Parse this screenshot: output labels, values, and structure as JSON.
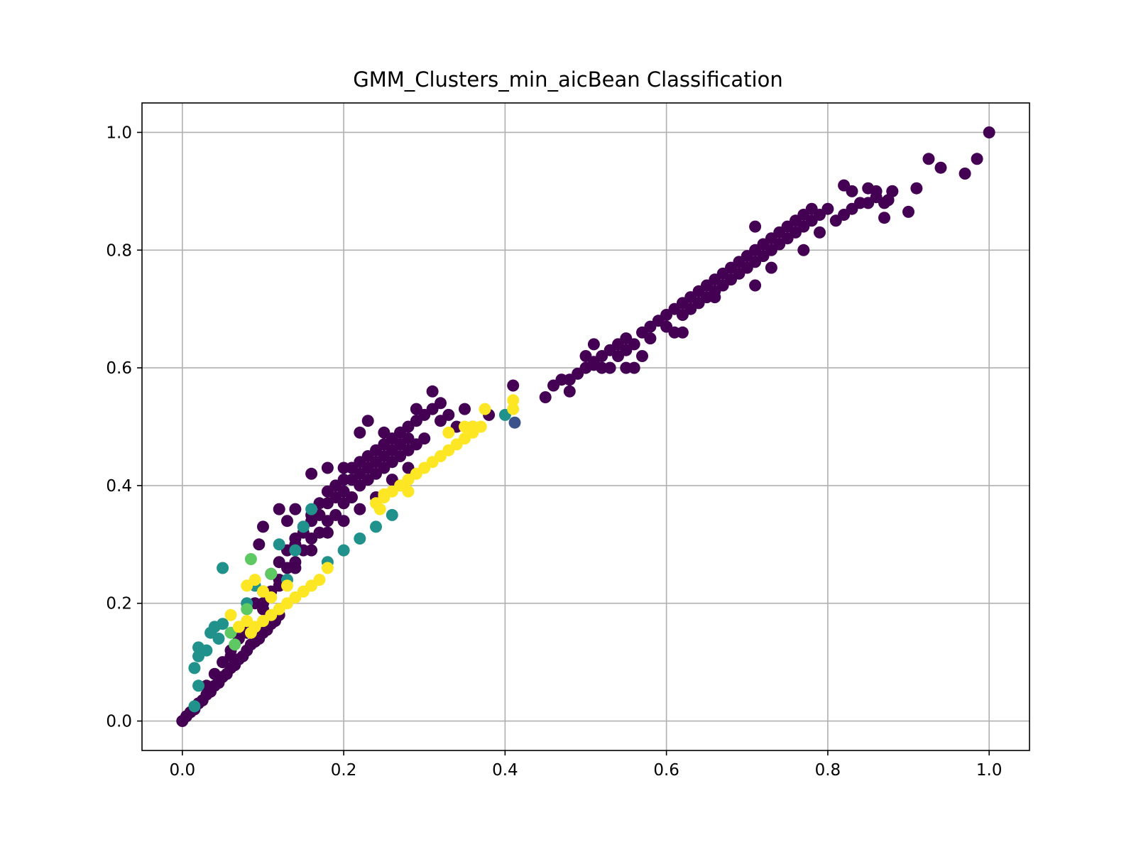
{
  "chart_data": {
    "type": "scatter",
    "title": "GMM_Clusters_min_aicBean Classification",
    "xlabel": "",
    "ylabel": "",
    "xlim": [
      -0.05,
      1.05
    ],
    "ylim": [
      -0.05,
      1.05
    ],
    "xticks": [
      "0.0",
      "0.2",
      "0.4",
      "0.6",
      "0.8",
      "1.0"
    ],
    "yticks": [
      "0.0",
      "0.2",
      "0.4",
      "0.6",
      "0.8",
      "1.0"
    ],
    "xtick_values": [
      0.0,
      0.2,
      0.4,
      0.6,
      0.8,
      1.0
    ],
    "ytick_values": [
      0.0,
      0.2,
      0.4,
      0.6,
      0.8,
      1.0
    ],
    "grid": true,
    "legend": "none",
    "colors": {
      "cluster_0": "#440154",
      "cluster_1": "#3b528b",
      "cluster_2": "#21918c",
      "cluster_3": "#5ec962",
      "cluster_4": "#fde725",
      "grid": "#b0b0b0"
    },
    "series": [
      {
        "cluster": "cluster_0",
        "points": [
          [
            0.0,
            0.0
          ],
          [
            0.005,
            0.008
          ],
          [
            0.01,
            0.015
          ],
          [
            0.015,
            0.02
          ],
          [
            0.02,
            0.03
          ],
          [
            0.025,
            0.035
          ],
          [
            0.03,
            0.045
          ],
          [
            0.035,
            0.05
          ],
          [
            0.04,
            0.06
          ],
          [
            0.045,
            0.065
          ],
          [
            0.05,
            0.075
          ],
          [
            0.055,
            0.08
          ],
          [
            0.06,
            0.09
          ],
          [
            0.065,
            0.095
          ],
          [
            0.07,
            0.105
          ],
          [
            0.075,
            0.11
          ],
          [
            0.08,
            0.12
          ],
          [
            0.085,
            0.13
          ],
          [
            0.09,
            0.135
          ],
          [
            0.095,
            0.14
          ],
          [
            0.1,
            0.15
          ],
          [
            0.105,
            0.155
          ],
          [
            0.11,
            0.165
          ],
          [
            0.115,
            0.17
          ],
          [
            0.12,
            0.18
          ],
          [
            0.03,
            0.06
          ],
          [
            0.04,
            0.08
          ],
          [
            0.05,
            0.1
          ],
          [
            0.06,
            0.12
          ],
          [
            0.07,
            0.14
          ],
          [
            0.08,
            0.16
          ],
          [
            0.09,
            0.2
          ],
          [
            0.1,
            0.22
          ],
          [
            0.11,
            0.25
          ],
          [
            0.12,
            0.27
          ],
          [
            0.13,
            0.29
          ],
          [
            0.14,
            0.31
          ],
          [
            0.15,
            0.33
          ],
          [
            0.16,
            0.35
          ],
          [
            0.17,
            0.37
          ],
          [
            0.18,
            0.39
          ],
          [
            0.19,
            0.4
          ],
          [
            0.2,
            0.41
          ],
          [
            0.21,
            0.43
          ],
          [
            0.22,
            0.44
          ],
          [
            0.23,
            0.45
          ],
          [
            0.24,
            0.46
          ],
          [
            0.25,
            0.47
          ],
          [
            0.26,
            0.48
          ],
          [
            0.27,
            0.49
          ],
          [
            0.28,
            0.5
          ],
          [
            0.29,
            0.51
          ],
          [
            0.3,
            0.52
          ],
          [
            0.31,
            0.53
          ],
          [
            0.32,
            0.51
          ],
          [
            0.33,
            0.52
          ],
          [
            0.34,
            0.5
          ],
          [
            0.36,
            0.5
          ],
          [
            0.1,
            0.2
          ],
          [
            0.11,
            0.22
          ],
          [
            0.12,
            0.24
          ],
          [
            0.13,
            0.26
          ],
          [
            0.14,
            0.27
          ],
          [
            0.15,
            0.29
          ],
          [
            0.16,
            0.31
          ],
          [
            0.17,
            0.32
          ],
          [
            0.18,
            0.34
          ],
          [
            0.19,
            0.35
          ],
          [
            0.2,
            0.37
          ],
          [
            0.21,
            0.38
          ],
          [
            0.22,
            0.4
          ],
          [
            0.23,
            0.41
          ],
          [
            0.24,
            0.42
          ],
          [
            0.25,
            0.43
          ],
          [
            0.26,
            0.44
          ],
          [
            0.27,
            0.45
          ],
          [
            0.28,
            0.46
          ],
          [
            0.29,
            0.47
          ],
          [
            0.3,
            0.48
          ],
          [
            0.14,
            0.3
          ],
          [
            0.15,
            0.32
          ],
          [
            0.16,
            0.34
          ],
          [
            0.17,
            0.35
          ],
          [
            0.18,
            0.37
          ],
          [
            0.19,
            0.38
          ],
          [
            0.2,
            0.39
          ],
          [
            0.21,
            0.41
          ],
          [
            0.22,
            0.42
          ],
          [
            0.23,
            0.43
          ],
          [
            0.24,
            0.44
          ],
          [
            0.25,
            0.45
          ],
          [
            0.26,
            0.46
          ],
          [
            0.27,
            0.47
          ],
          [
            0.28,
            0.48
          ],
          [
            0.1,
            0.33
          ],
          [
            0.12,
            0.36
          ],
          [
            0.13,
            0.34
          ],
          [
            0.14,
            0.36
          ],
          [
            0.16,
            0.42
          ],
          [
            0.18,
            0.43
          ],
          [
            0.2,
            0.43
          ],
          [
            0.22,
            0.49
          ],
          [
            0.23,
            0.51
          ],
          [
            0.25,
            0.49
          ],
          [
            0.27,
            0.49
          ],
          [
            0.29,
            0.53
          ],
          [
            0.31,
            0.56
          ],
          [
            0.32,
            0.54
          ],
          [
            0.35,
            0.53
          ],
          [
            0.38,
            0.52
          ],
          [
            0.41,
            0.57
          ],
          [
            0.095,
            0.3
          ],
          [
            0.06,
            0.11
          ],
          [
            0.08,
            0.15
          ],
          [
            0.1,
            0.19
          ],
          [
            0.12,
            0.23
          ],
          [
            0.14,
            0.26
          ],
          [
            0.16,
            0.29
          ],
          [
            0.18,
            0.32
          ],
          [
            0.2,
            0.34
          ],
          [
            0.22,
            0.36
          ],
          [
            0.24,
            0.38
          ],
          [
            0.26,
            0.41
          ],
          [
            0.28,
            0.43
          ],
          [
            0.45,
            0.55
          ],
          [
            0.46,
            0.57
          ],
          [
            0.47,
            0.58
          ],
          [
            0.48,
            0.56
          ],
          [
            0.48,
            0.58
          ],
          [
            0.49,
            0.59
          ],
          [
            0.5,
            0.6
          ],
          [
            0.5,
            0.62
          ],
          [
            0.51,
            0.61
          ],
          [
            0.51,
            0.64
          ],
          [
            0.52,
            0.6
          ],
          [
            0.52,
            0.62
          ],
          [
            0.53,
            0.63
          ],
          [
            0.54,
            0.62
          ],
          [
            0.54,
            0.64
          ],
          [
            0.55,
            0.63
          ],
          [
            0.55,
            0.65
          ],
          [
            0.56,
            0.6
          ],
          [
            0.56,
            0.64
          ],
          [
            0.57,
            0.66
          ],
          [
            0.58,
            0.65
          ],
          [
            0.58,
            0.67
          ],
          [
            0.59,
            0.68
          ],
          [
            0.6,
            0.67
          ],
          [
            0.6,
            0.69
          ],
          [
            0.61,
            0.66
          ],
          [
            0.61,
            0.7
          ],
          [
            0.62,
            0.69
          ],
          [
            0.62,
            0.71
          ],
          [
            0.63,
            0.7
          ],
          [
            0.63,
            0.72
          ],
          [
            0.64,
            0.71
          ],
          [
            0.64,
            0.73
          ],
          [
            0.65,
            0.72
          ],
          [
            0.65,
            0.74
          ],
          [
            0.66,
            0.73
          ],
          [
            0.66,
            0.75
          ],
          [
            0.67,
            0.74
          ],
          [
            0.67,
            0.76
          ],
          [
            0.68,
            0.75
          ],
          [
            0.68,
            0.77
          ],
          [
            0.69,
            0.76
          ],
          [
            0.69,
            0.78
          ],
          [
            0.7,
            0.77
          ],
          [
            0.7,
            0.79
          ],
          [
            0.71,
            0.78
          ],
          [
            0.71,
            0.8
          ],
          [
            0.72,
            0.79
          ],
          [
            0.72,
            0.81
          ],
          [
            0.73,
            0.8
          ],
          [
            0.73,
            0.82
          ],
          [
            0.74,
            0.81
          ],
          [
            0.74,
            0.83
          ],
          [
            0.75,
            0.82
          ],
          [
            0.75,
            0.84
          ],
          [
            0.76,
            0.83
          ],
          [
            0.76,
            0.85
          ],
          [
            0.77,
            0.84
          ],
          [
            0.77,
            0.86
          ],
          [
            0.78,
            0.85
          ],
          [
            0.78,
            0.87
          ],
          [
            0.79,
            0.86
          ],
          [
            0.8,
            0.87
          ],
          [
            0.81,
            0.85
          ],
          [
            0.82,
            0.86
          ],
          [
            0.83,
            0.87
          ],
          [
            0.84,
            0.88
          ],
          [
            0.85,
            0.88
          ],
          [
            0.86,
            0.89
          ],
          [
            0.87,
            0.88
          ],
          [
            0.88,
            0.9
          ],
          [
            0.62,
            0.66
          ],
          [
            0.66,
            0.72
          ],
          [
            0.71,
            0.74
          ],
          [
            0.73,
            0.77
          ],
          [
            0.77,
            0.8
          ],
          [
            0.79,
            0.83
          ],
          [
            0.71,
            0.84
          ],
          [
            0.82,
            0.91
          ],
          [
            0.83,
            0.9
          ],
          [
            0.85,
            0.905
          ],
          [
            0.86,
            0.9
          ],
          [
            0.87,
            0.855
          ],
          [
            0.875,
            0.885
          ],
          [
            0.88,
            0.9
          ],
          [
            0.9,
            0.865
          ],
          [
            0.91,
            0.905
          ],
          [
            0.925,
            0.955
          ],
          [
            0.94,
            0.94
          ],
          [
            0.97,
            0.93
          ],
          [
            0.985,
            0.955
          ],
          [
            1.0,
            1.0
          ],
          [
            0.55,
            0.6
          ],
          [
            0.51,
            0.605
          ],
          [
            0.53,
            0.6
          ],
          [
            0.57,
            0.62
          ]
        ]
      },
      {
        "cluster": "cluster_1",
        "points": [
          [
            0.412,
            0.507
          ]
        ]
      },
      {
        "cluster": "cluster_2",
        "points": [
          [
            0.015,
            0.025
          ],
          [
            0.02,
            0.06
          ],
          [
            0.015,
            0.09
          ],
          [
            0.02,
            0.11
          ],
          [
            0.02,
            0.125
          ],
          [
            0.03,
            0.12
          ],
          [
            0.035,
            0.15
          ],
          [
            0.04,
            0.16
          ],
          [
            0.05,
            0.165
          ],
          [
            0.045,
            0.14
          ],
          [
            0.05,
            0.26
          ],
          [
            0.08,
            0.2
          ],
          [
            0.09,
            0.23
          ],
          [
            0.12,
            0.3
          ],
          [
            0.14,
            0.29
          ],
          [
            0.15,
            0.33
          ],
          [
            0.16,
            0.36
          ],
          [
            0.13,
            0.24
          ],
          [
            0.18,
            0.27
          ],
          [
            0.2,
            0.29
          ],
          [
            0.22,
            0.31
          ],
          [
            0.24,
            0.33
          ],
          [
            0.26,
            0.35
          ],
          [
            0.4,
            0.52
          ]
        ]
      },
      {
        "cluster": "cluster_3",
        "points": [
          [
            0.085,
            0.275
          ],
          [
            0.1,
            0.22
          ],
          [
            0.11,
            0.25
          ],
          [
            0.06,
            0.15
          ],
          [
            0.065,
            0.13
          ],
          [
            0.08,
            0.19
          ]
        ]
      },
      {
        "cluster": "cluster_4",
        "points": [
          [
            0.06,
            0.18
          ],
          [
            0.07,
            0.16
          ],
          [
            0.08,
            0.17
          ],
          [
            0.085,
            0.15
          ],
          [
            0.09,
            0.16
          ],
          [
            0.1,
            0.17
          ],
          [
            0.11,
            0.18
          ],
          [
            0.12,
            0.19
          ],
          [
            0.13,
            0.2
          ],
          [
            0.14,
            0.21
          ],
          [
            0.15,
            0.22
          ],
          [
            0.16,
            0.23
          ],
          [
            0.17,
            0.24
          ],
          [
            0.18,
            0.26
          ],
          [
            0.08,
            0.23
          ],
          [
            0.09,
            0.24
          ],
          [
            0.1,
            0.22
          ],
          [
            0.11,
            0.21
          ],
          [
            0.13,
            0.23
          ],
          [
            0.24,
            0.37
          ],
          [
            0.25,
            0.38
          ],
          [
            0.26,
            0.39
          ],
          [
            0.27,
            0.4
          ],
          [
            0.28,
            0.41
          ],
          [
            0.29,
            0.42
          ],
          [
            0.3,
            0.43
          ],
          [
            0.31,
            0.44
          ],
          [
            0.32,
            0.45
          ],
          [
            0.33,
            0.46
          ],
          [
            0.34,
            0.47
          ],
          [
            0.35,
            0.48
          ],
          [
            0.36,
            0.49
          ],
          [
            0.37,
            0.5
          ],
          [
            0.245,
            0.36
          ],
          [
            0.25,
            0.385
          ],
          [
            0.28,
            0.39
          ],
          [
            0.33,
            0.49
          ],
          [
            0.35,
            0.5
          ],
          [
            0.36,
            0.5
          ],
          [
            0.375,
            0.53
          ],
          [
            0.41,
            0.545
          ],
          [
            0.41,
            0.53
          ]
        ]
      }
    ]
  }
}
